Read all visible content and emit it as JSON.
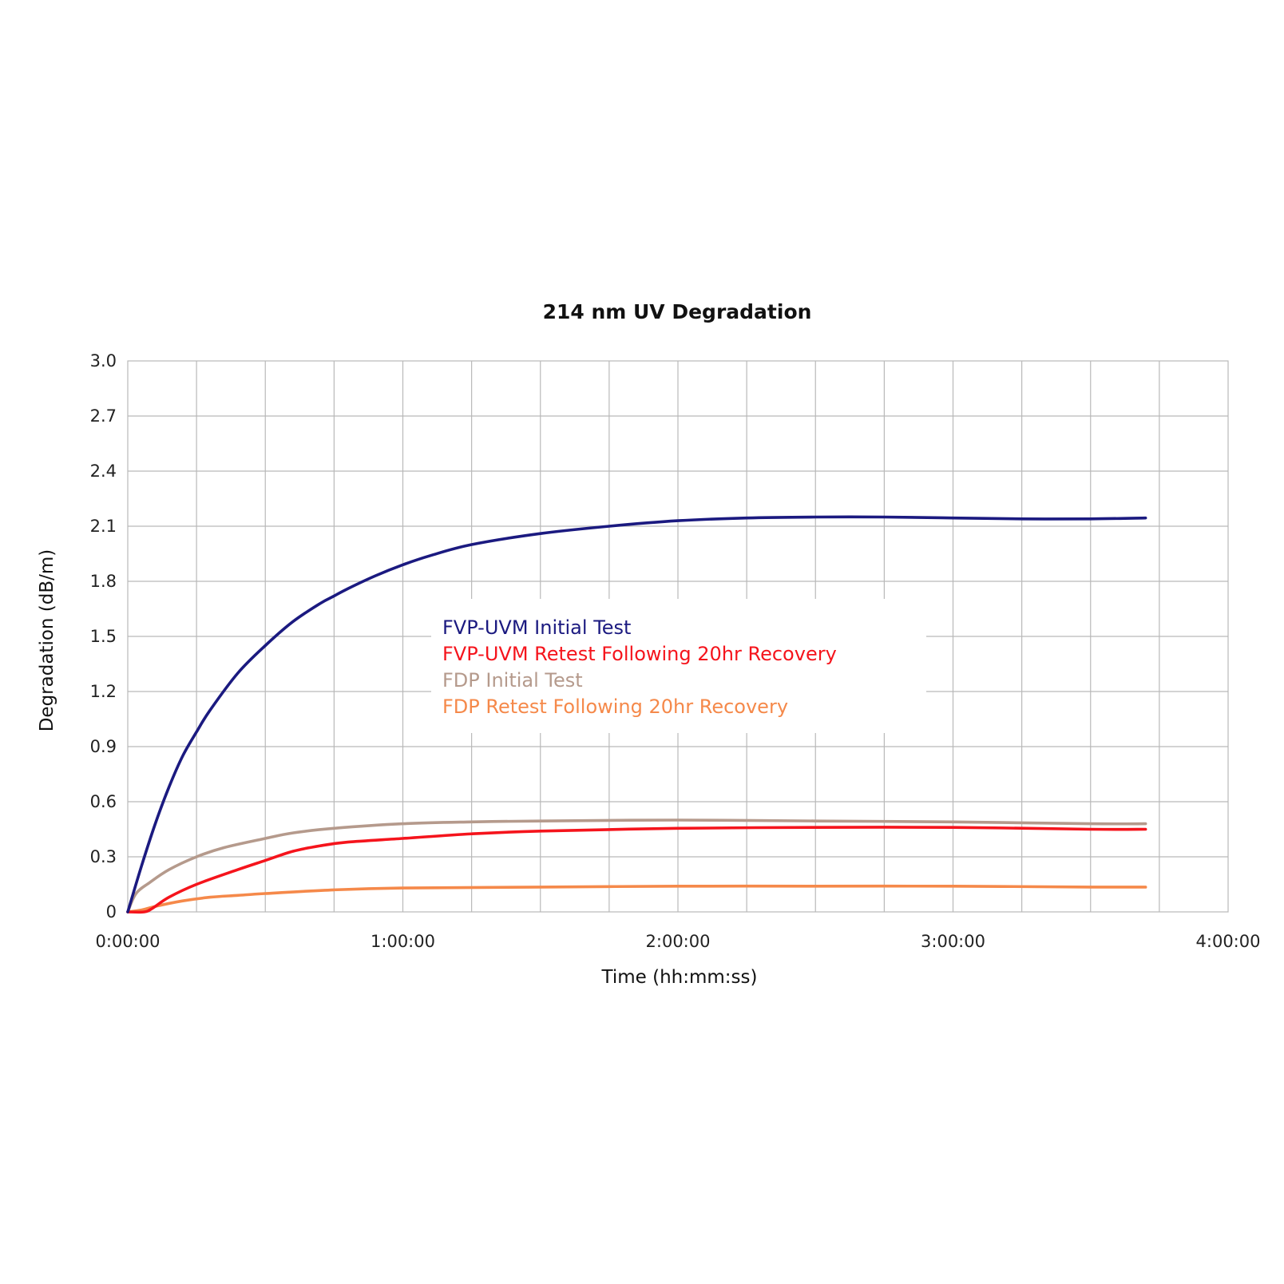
{
  "chart_data": {
    "type": "line",
    "title": "214 nm UV Degradation",
    "xlabel": "Time (hh:mm:ss)",
    "ylabel": "Degradation (dB/m)",
    "x_unit": "hours",
    "xlim": [
      0,
      4
    ],
    "ylim": [
      0,
      3.0
    ],
    "x_ticks": [
      {
        "value": 0,
        "label": "0:00:00"
      },
      {
        "value": 1,
        "label": "1:00:00"
      },
      {
        "value": 2,
        "label": "2:00:00"
      },
      {
        "value": 3,
        "label": "3:00:00"
      },
      {
        "value": 4,
        "label": "4:00:00"
      }
    ],
    "y_ticks": [
      {
        "value": 0,
        "label": "0"
      },
      {
        "value": 0.3,
        "label": "0.3"
      },
      {
        "value": 0.6,
        "label": "0.6"
      },
      {
        "value": 0.9,
        "label": "0.9"
      },
      {
        "value": 1.2,
        "label": "1.2"
      },
      {
        "value": 1.5,
        "label": "1.5"
      },
      {
        "value": 1.8,
        "label": "1.8"
      },
      {
        "value": 2.1,
        "label": "2.1"
      },
      {
        "value": 2.4,
        "label": "2.4"
      },
      {
        "value": 2.7,
        "label": "2.7"
      },
      {
        "value": 3.0,
        "label": "3.0"
      }
    ],
    "x_grid_step": 0.25,
    "x_grid_max": 3.75,
    "grid": true,
    "legend_position": "center",
    "series": [
      {
        "name": "FVP-UVM Initial Test",
        "color": "#1b1a80",
        "x": [
          0,
          0.05,
          0.1,
          0.15,
          0.2,
          0.25,
          0.3,
          0.4,
          0.5,
          0.6,
          0.7,
          0.75,
          0.8,
          0.9,
          1.0,
          1.1,
          1.25,
          1.5,
          1.75,
          2.0,
          2.25,
          2.5,
          2.75,
          3.0,
          3.25,
          3.5,
          3.7
        ],
        "y": [
          0,
          0.25,
          0.48,
          0.68,
          0.85,
          0.98,
          1.1,
          1.3,
          1.45,
          1.58,
          1.68,
          1.72,
          1.76,
          1.83,
          1.89,
          1.94,
          2.0,
          2.06,
          2.1,
          2.13,
          2.145,
          2.15,
          2.15,
          2.145,
          2.14,
          2.14,
          2.145
        ]
      },
      {
        "name": "FVP-UVM Retest Following 20hr Recovery",
        "color": "#f5141c",
        "x": [
          0,
          0.06,
          0.09,
          0.15,
          0.25,
          0.4,
          0.5,
          0.6,
          0.7,
          0.8,
          1.0,
          1.25,
          1.5,
          2.0,
          2.5,
          3.0,
          3.5,
          3.7
        ],
        "y": [
          0,
          0,
          0.02,
          0.08,
          0.15,
          0.23,
          0.28,
          0.33,
          0.36,
          0.38,
          0.4,
          0.425,
          0.44,
          0.455,
          0.46,
          0.46,
          0.45,
          0.45
        ]
      },
      {
        "name": "FDP Initial Test",
        "color": "#b59a8c",
        "x": [
          0,
          0.03,
          0.08,
          0.15,
          0.25,
          0.35,
          0.5,
          0.6,
          0.75,
          1.0,
          1.25,
          1.5,
          2.0,
          2.5,
          3.0,
          3.5,
          3.7
        ],
        "y": [
          0,
          0.1,
          0.16,
          0.23,
          0.3,
          0.35,
          0.4,
          0.43,
          0.455,
          0.48,
          0.49,
          0.495,
          0.5,
          0.495,
          0.49,
          0.48,
          0.48
        ]
      },
      {
        "name": "FDP Retest Following 20hr Recovery",
        "color": "#f5894a",
        "x": [
          0,
          0.05,
          0.1,
          0.2,
          0.3,
          0.4,
          0.5,
          0.75,
          1.0,
          1.5,
          2.0,
          2.5,
          3.0,
          3.5,
          3.7
        ],
        "y": [
          0,
          0.01,
          0.03,
          0.06,
          0.08,
          0.09,
          0.1,
          0.12,
          0.13,
          0.135,
          0.14,
          0.14,
          0.14,
          0.135,
          0.135
        ]
      }
    ]
  }
}
